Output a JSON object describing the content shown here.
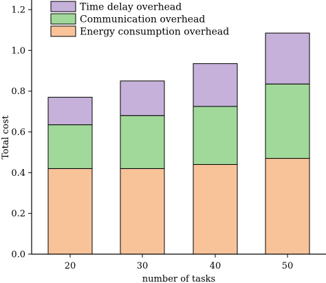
{
  "chart_data": {
    "type": "bar",
    "stacked": true,
    "categories": [
      "20",
      "30",
      "40",
      "50"
    ],
    "series": [
      {
        "name": "Energy consumption overhead",
        "values": [
          0.42,
          0.42,
          0.44,
          0.47
        ],
        "color": "#f9c39a"
      },
      {
        "name": "Communication overhead",
        "values": [
          0.215,
          0.26,
          0.285,
          0.365
        ],
        "color": "#a1d99b"
      },
      {
        "name": "Time delay overhead",
        "values": [
          0.135,
          0.17,
          0.21,
          0.25
        ],
        "color": "#c5b1d9"
      }
    ],
    "legend_order": [
      "Time delay overhead",
      "Communication overhead",
      "Energy consumption overhead"
    ],
    "xlabel": "number of tasks",
    "ylabel": "Total cost",
    "ylim": [
      0,
      1.2
    ],
    "yticks": [
      "0.0",
      "0.2",
      "0.4",
      "0.6",
      "0.8",
      "1.0",
      "1.2"
    ],
    "legend_position": "top-left",
    "grid": false
  }
}
